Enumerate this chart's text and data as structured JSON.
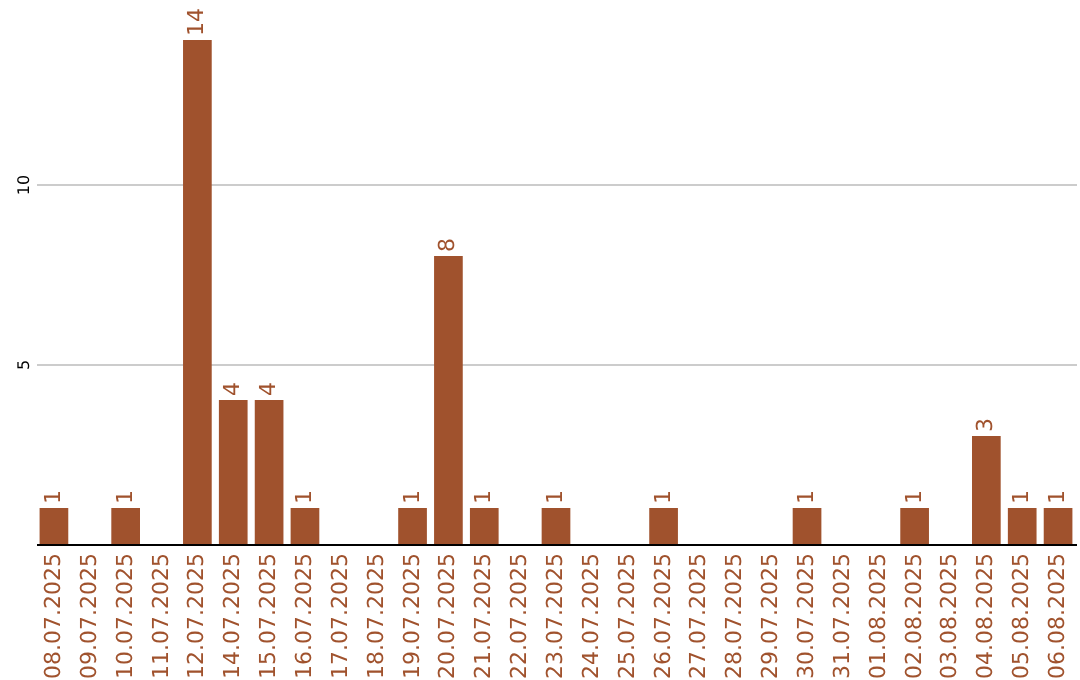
{
  "chart_data": {
    "type": "bar",
    "categories": [
      "08.07.2025",
      "09.07.2025",
      "10.07.2025",
      "11.07.2025",
      "12.07.2025",
      "14.07.2025",
      "15.07.2025",
      "16.07.2025",
      "17.07.2025",
      "18.07.2025",
      "19.07.2025",
      "20.07.2025",
      "21.07.2025",
      "22.07.2025",
      "23.07.2025",
      "24.07.2025",
      "25.07.2025",
      "26.07.2025",
      "27.07.2025",
      "28.07.2025",
      "29.07.2025",
      "30.07.2025",
      "31.07.2025",
      "01.08.2025",
      "02.08.2025",
      "03.08.2025",
      "04.08.2025",
      "05.08.2025",
      "06.08.2025"
    ],
    "values": [
      1,
      null,
      1,
      null,
      14,
      4,
      4,
      1,
      null,
      null,
      1,
      8,
      1,
      null,
      1,
      null,
      null,
      1,
      null,
      null,
      null,
      1,
      null,
      null,
      1,
      null,
      3,
      1,
      1
    ],
    "color": "#a0522d",
    "ylim": [
      0,
      15
    ],
    "yticks": [
      5,
      10
    ],
    "grid": "y",
    "data_labels": true
  }
}
